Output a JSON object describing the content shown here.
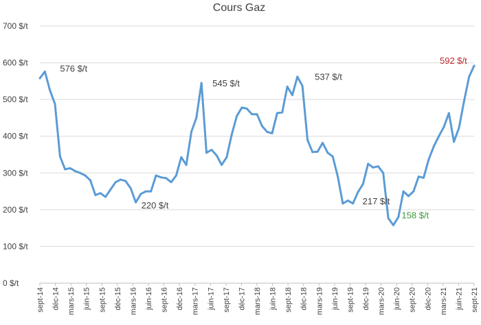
{
  "chart_data": {
    "type": "line",
    "title": "Cours Gaz",
    "xlabel": "",
    "ylabel": "",
    "ylim": [
      0,
      700
    ],
    "y_ticks": [
      0,
      100,
      200,
      300,
      400,
      500,
      600,
      700
    ],
    "y_tick_labels": [
      "0 $/t",
      "100 $/t",
      "200 $/t",
      "300 $/t",
      "400 $/t",
      "500 $/t",
      "600 $/t",
      "700 $/t"
    ],
    "x_tick_labels": [
      "sept-14",
      "déc-14",
      "mars-15",
      "juin-15",
      "sept-15",
      "déc-15",
      "mars-16",
      "juin-16",
      "sept-16",
      "déc-16",
      "mars-17",
      "juin-17",
      "sept-17",
      "déc-17",
      "mars-18",
      "juin-18",
      "sept-18",
      "déc-18",
      "mars-19",
      "juin-19",
      "sept-19",
      "déc-19",
      "mars-20",
      "juin-20",
      "sept-20",
      "déc-20",
      "mars-21",
      "juin-21",
      "sept-21"
    ],
    "grid": true,
    "legend": "none",
    "colors": {
      "line": "#5b9bd5",
      "text": "#404040",
      "grid": "#d9d9d9",
      "low_label": "#3a9a3a",
      "high_label": "#c0282d"
    },
    "series": [
      {
        "values": [
          558,
          576,
          525,
          488,
          345,
          310,
          313,
          305,
          300,
          293,
          280,
          240,
          245,
          235,
          255,
          275,
          282,
          278,
          258,
          220,
          243,
          250,
          250,
          293,
          288,
          286,
          275,
          293,
          343,
          322,
          412,
          450,
          545,
          355,
          363,
          348,
          322,
          343,
          405,
          455,
          478,
          475,
          460,
          460,
          428,
          412,
          408,
          463,
          465,
          535,
          512,
          562,
          537,
          390,
          357,
          358,
          382,
          355,
          345,
          290,
          217,
          225,
          217,
          248,
          270,
          325,
          315,
          318,
          300,
          177,
          158,
          180,
          250,
          237,
          250,
          290,
          287,
          337,
          372,
          400,
          425,
          463,
          385,
          423,
          495,
          562,
          592
        ]
      }
    ],
    "annotations": [
      {
        "text": "576 $/t",
        "index": 1,
        "value": 576,
        "color_key": "text"
      },
      {
        "text": "220 $/t",
        "index": 19,
        "value": 220,
        "color_key": "text"
      },
      {
        "text": "545 $/t",
        "index": 32,
        "value": 545,
        "color_key": "text"
      },
      {
        "text": "537 $/t",
        "index": 52,
        "value": 537,
        "color_key": "text"
      },
      {
        "text": "217 $/t",
        "index": 62,
        "value": 217,
        "color_key": "text"
      },
      {
        "text": "158 $/t",
        "index": 70,
        "value": 158,
        "color_key": "low_label"
      },
      {
        "text": "592 $/t",
        "index": 86,
        "value": 592,
        "color_key": "high_label"
      }
    ]
  }
}
